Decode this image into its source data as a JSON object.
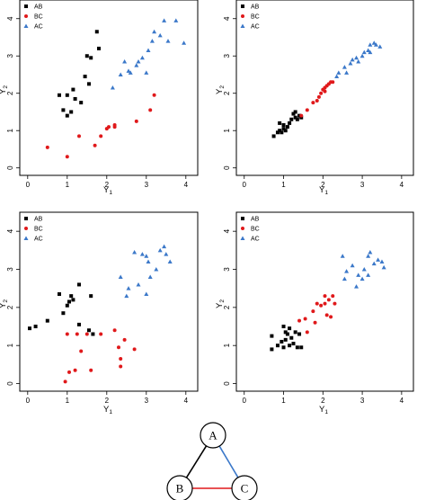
{
  "chart_data": [
    {
      "type": "scatter",
      "xlabel": "Y",
      "xlabel_sub": "1",
      "ylabel": "Y",
      "ylabel_sub": "2",
      "xlim": [
        -0.2,
        4.3
      ],
      "ylim": [
        -0.2,
        4.5
      ],
      "xticks": [
        "0",
        "1",
        "2",
        "3",
        "4"
      ],
      "yticks": [
        "0",
        "1",
        "2",
        "3",
        "4"
      ],
      "legend_position": "top-left",
      "series": [
        {
          "name": "AB",
          "marker": "square",
          "color": "#000000",
          "points": [
            [
              0.8,
              1.95
            ],
            [
              1.0,
              1.95
            ],
            [
              1.15,
              2.1
            ],
            [
              1.2,
              1.85
            ],
            [
              1.35,
              1.75
            ],
            [
              1.45,
              2.45
            ],
            [
              1.5,
              3.0
            ],
            [
              1.55,
              2.25
            ],
            [
              1.6,
              2.95
            ],
            [
              1.75,
              3.65
            ],
            [
              1.8,
              3.2
            ],
            [
              0.9,
              1.55
            ],
            [
              1.0,
              1.4
            ],
            [
              1.1,
              1.5
            ]
          ]
        },
        {
          "name": "BC",
          "marker": "circle",
          "color": "#e0191b",
          "points": [
            [
              0.5,
              0.55
            ],
            [
              1.0,
              0.3
            ],
            [
              1.3,
              0.85
            ],
            [
              1.7,
              0.6
            ],
            [
              1.85,
              0.85
            ],
            [
              2.0,
              1.05
            ],
            [
              2.05,
              1.1
            ],
            [
              2.2,
              1.1
            ],
            [
              2.75,
              1.25
            ],
            [
              3.1,
              1.55
            ],
            [
              3.2,
              1.95
            ],
            [
              2.2,
              1.15
            ]
          ]
        },
        {
          "name": "AC",
          "marker": "triangle",
          "color": "#3b78c9",
          "points": [
            [
              2.15,
              2.15
            ],
            [
              2.35,
              2.5
            ],
            [
              2.45,
              2.85
            ],
            [
              2.55,
              2.6
            ],
            [
              2.6,
              2.55
            ],
            [
              2.75,
              2.75
            ],
            [
              2.8,
              2.85
            ],
            [
              2.9,
              2.95
            ],
            [
              3.0,
              2.55
            ],
            [
              3.05,
              3.15
            ],
            [
              3.15,
              3.4
            ],
            [
              3.2,
              3.65
            ],
            [
              3.35,
              3.55
            ],
            [
              3.55,
              3.4
            ],
            [
              3.75,
              3.95
            ],
            [
              3.95,
              3.35
            ],
            [
              3.45,
              3.95
            ]
          ]
        }
      ]
    },
    {
      "type": "scatter",
      "xlabel": "Y",
      "xlabel_sub": "1",
      "ylabel": "Y",
      "ylabel_sub": "2",
      "xlim": [
        -0.2,
        4.3
      ],
      "ylim": [
        -0.2,
        4.5
      ],
      "xticks": [
        "0",
        "1",
        "2",
        "3",
        "4"
      ],
      "yticks": [
        "0",
        "1",
        "2",
        "3",
        "4"
      ],
      "legend_position": "top-left",
      "series": [
        {
          "name": "AB",
          "marker": "square",
          "color": "#000000",
          "points": [
            [
              0.75,
              0.85
            ],
            [
              0.85,
              0.95
            ],
            [
              0.9,
              1.0
            ],
            [
              0.95,
              0.95
            ],
            [
              1.0,
              1.05
            ],
            [
              1.0,
              1.15
            ],
            [
              1.05,
              1.0
            ],
            [
              1.1,
              1.1
            ],
            [
              1.15,
              1.2
            ],
            [
              1.2,
              1.3
            ],
            [
              1.25,
              1.45
            ],
            [
              1.3,
              1.35
            ],
            [
              1.35,
              1.3
            ],
            [
              1.4,
              1.4
            ],
            [
              1.45,
              1.35
            ],
            [
              1.3,
              1.5
            ],
            [
              0.9,
              1.2
            ]
          ]
        },
        {
          "name": "BC",
          "marker": "circle",
          "color": "#e0191b",
          "points": [
            [
              1.45,
              1.4
            ],
            [
              1.6,
              1.55
            ],
            [
              1.75,
              1.75
            ],
            [
              1.85,
              1.8
            ],
            [
              1.9,
              1.9
            ],
            [
              1.95,
              2.0
            ],
            [
              2.0,
              2.1
            ],
            [
              2.05,
              2.15
            ],
            [
              2.1,
              2.2
            ],
            [
              2.15,
              2.25
            ],
            [
              2.2,
              2.3
            ],
            [
              2.25,
              2.3
            ],
            [
              2.05,
              2.05
            ]
          ]
        },
        {
          "name": "AC",
          "marker": "triangle",
          "color": "#3b78c9",
          "points": [
            [
              2.35,
              2.45
            ],
            [
              2.4,
              2.55
            ],
            [
              2.55,
              2.7
            ],
            [
              2.6,
              2.55
            ],
            [
              2.7,
              2.8
            ],
            [
              2.75,
              2.9
            ],
            [
              2.85,
              2.95
            ],
            [
              2.9,
              2.85
            ],
            [
              3.0,
              3.0
            ],
            [
              3.05,
              3.1
            ],
            [
              3.15,
              3.15
            ],
            [
              3.2,
              3.3
            ],
            [
              3.3,
              3.35
            ],
            [
              3.35,
              3.3
            ],
            [
              3.45,
              3.25
            ],
            [
              3.2,
              3.1
            ]
          ]
        }
      ]
    },
    {
      "type": "scatter",
      "xlabel": "Y",
      "xlabel_sub": "1",
      "ylabel": "Y",
      "ylabel_sub": "2",
      "xlim": [
        -0.2,
        4.3
      ],
      "ylim": [
        -0.2,
        4.5
      ],
      "xticks": [
        "0",
        "1",
        "2",
        "3",
        "4"
      ],
      "yticks": [
        "0",
        "1",
        "2",
        "3",
        "4"
      ],
      "legend_position": "top-left",
      "series": [
        {
          "name": "AB",
          "marker": "square",
          "color": "#000000",
          "points": [
            [
              0.05,
              1.45
            ],
            [
              0.2,
              1.5
            ],
            [
              0.5,
              1.65
            ],
            [
              0.8,
              2.35
            ],
            [
              0.9,
              1.85
            ],
            [
              1.0,
              2.05
            ],
            [
              1.05,
              2.15
            ],
            [
              1.1,
              2.3
            ],
            [
              1.15,
              2.2
            ],
            [
              1.3,
              2.6
            ],
            [
              1.3,
              1.55
            ],
            [
              1.55,
              1.4
            ],
            [
              1.6,
              2.3
            ],
            [
              1.65,
              1.3
            ]
          ]
        },
        {
          "name": "BC",
          "marker": "circle",
          "color": "#e0191b",
          "points": [
            [
              0.95,
              0.05
            ],
            [
              1.0,
              1.3
            ],
            [
              1.05,
              0.3
            ],
            [
              1.2,
              0.35
            ],
            [
              1.25,
              1.3
            ],
            [
              1.35,
              0.85
            ],
            [
              1.5,
              1.3
            ],
            [
              1.6,
              0.35
            ],
            [
              1.85,
              1.3
            ],
            [
              2.2,
              1.4
            ],
            [
              2.3,
              0.95
            ],
            [
              2.35,
              0.65
            ],
            [
              2.35,
              0.45
            ],
            [
              2.45,
              1.15
            ],
            [
              2.7,
              0.9
            ]
          ]
        },
        {
          "name": "AC",
          "marker": "triangle",
          "color": "#3b78c9",
          "points": [
            [
              2.35,
              2.8
            ],
            [
              2.5,
              2.3
            ],
            [
              2.55,
              2.5
            ],
            [
              2.7,
              3.45
            ],
            [
              2.8,
              2.6
            ],
            [
              2.9,
              3.4
            ],
            [
              3.0,
              3.35
            ],
            [
              3.0,
              2.35
            ],
            [
              3.05,
              3.2
            ],
            [
              3.1,
              2.8
            ],
            [
              3.25,
              3.0
            ],
            [
              3.35,
              3.5
            ],
            [
              3.45,
              3.6
            ],
            [
              3.5,
              3.4
            ],
            [
              3.6,
              3.2
            ]
          ]
        }
      ]
    },
    {
      "type": "scatter",
      "xlabel": "Y",
      "xlabel_sub": "1",
      "ylabel": "Y",
      "ylabel_sub": "2",
      "xlim": [
        -0.2,
        4.3
      ],
      "ylim": [
        -0.2,
        4.5
      ],
      "xticks": [
        "0",
        "1",
        "2",
        "3",
        "4"
      ],
      "yticks": [
        "0",
        "1",
        "2",
        "3",
        "4"
      ],
      "legend_position": "top-left",
      "series": [
        {
          "name": "AB",
          "marker": "square",
          "color": "#000000",
          "points": [
            [
              0.7,
              0.9
            ],
            [
              0.7,
              1.25
            ],
            [
              0.85,
              1.0
            ],
            [
              0.95,
              1.1
            ],
            [
              1.0,
              1.5
            ],
            [
              1.0,
              0.95
            ],
            [
              1.05,
              1.15
            ],
            [
              1.1,
              1.3
            ],
            [
              1.15,
              1.0
            ],
            [
              1.2,
              1.2
            ],
            [
              1.25,
              1.05
            ],
            [
              1.3,
              1.35
            ],
            [
              1.35,
              0.95
            ],
            [
              1.4,
              1.3
            ],
            [
              1.45,
              0.95
            ],
            [
              1.05,
              1.35
            ],
            [
              1.15,
              1.45
            ]
          ]
        },
        {
          "name": "BC",
          "marker": "circle",
          "color": "#e0191b",
          "points": [
            [
              1.4,
              1.65
            ],
            [
              1.55,
              1.7
            ],
            [
              1.6,
              1.35
            ],
            [
              1.75,
              1.9
            ],
            [
              1.8,
              1.6
            ],
            [
              1.85,
              2.1
            ],
            [
              1.95,
              2.05
            ],
            [
              2.05,
              2.3
            ],
            [
              2.1,
              1.8
            ],
            [
              2.15,
              2.2
            ],
            [
              2.2,
              1.75
            ],
            [
              2.25,
              2.3
            ],
            [
              2.3,
              2.1
            ],
            [
              2.05,
              2.1
            ]
          ]
        },
        {
          "name": "AC",
          "marker": "triangle",
          "color": "#3b78c9",
          "points": [
            [
              2.5,
              3.35
            ],
            [
              2.55,
              2.75
            ],
            [
              2.6,
              2.95
            ],
            [
              2.75,
              3.1
            ],
            [
              2.85,
              2.55
            ],
            [
              2.9,
              2.85
            ],
            [
              3.0,
              2.75
            ],
            [
              3.05,
              3.0
            ],
            [
              3.15,
              3.35
            ],
            [
              3.2,
              3.45
            ],
            [
              3.3,
              3.15
            ],
            [
              3.4,
              3.25
            ],
            [
              3.5,
              3.2
            ],
            [
              3.55,
              3.05
            ],
            [
              3.15,
              2.85
            ]
          ]
        }
      ]
    }
  ],
  "diagram": {
    "nodes": [
      {
        "id": "A",
        "label": "A"
      },
      {
        "id": "B",
        "label": "B"
      },
      {
        "id": "C",
        "label": "C"
      }
    ],
    "edges": [
      {
        "from": "A",
        "to": "B",
        "color": "#000000"
      },
      {
        "from": "B",
        "to": "C",
        "color": "#e0191b"
      },
      {
        "from": "A",
        "to": "C",
        "color": "#3b78c9"
      }
    ]
  }
}
